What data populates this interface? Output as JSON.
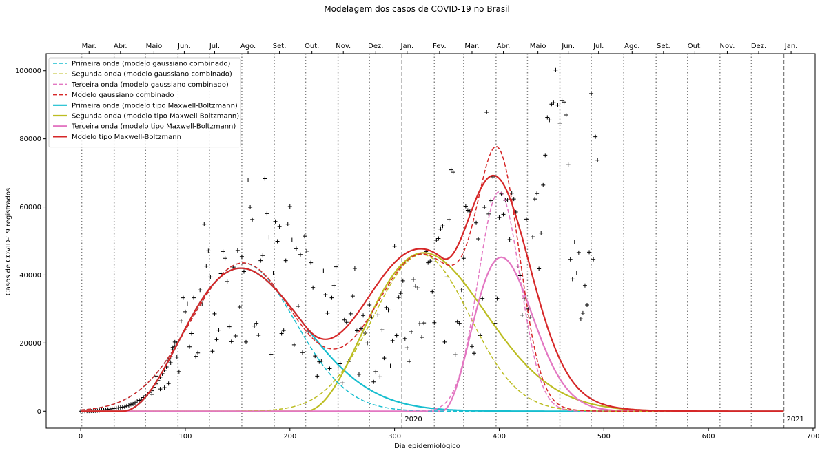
{
  "chart_data": {
    "type": "scatter+line",
    "title": "Modelagem dos casos de COVID-19 no Brasil",
    "xlabel": "Dia epidemiológico",
    "ylabel": "Casos de COVID-19 registrados",
    "xlim": [
      -33,
      702
    ],
    "ylim": [
      -5000,
      105000
    ],
    "xticks": [
      0,
      100,
      200,
      300,
      400,
      500,
      600,
      700
    ],
    "yticks": [
      0,
      20000,
      40000,
      60000,
      80000,
      100000
    ],
    "month_boundaries": [
      1,
      32,
      62,
      93,
      123,
      154,
      185,
      215,
      246,
      276,
      307,
      338,
      366,
      397,
      427,
      458,
      488,
      519,
      550,
      580,
      611,
      641,
      672
    ],
    "year_boundaries": [
      {
        "day": 307,
        "label": "2020"
      },
      {
        "day": 672,
        "label": "2021"
      }
    ],
    "top_month_labels": [
      {
        "day": 8,
        "label": "Mar."
      },
      {
        "day": 38,
        "label": "Abr."
      },
      {
        "day": 70,
        "label": "Maio"
      },
      {
        "day": 99,
        "label": "Jun."
      },
      {
        "day": 128,
        "label": "Jul."
      },
      {
        "day": 160,
        "label": "Ago."
      },
      {
        "day": 190,
        "label": "Set."
      },
      {
        "day": 221,
        "label": "Out."
      },
      {
        "day": 251,
        "label": "Nov."
      },
      {
        "day": 282,
        "label": "Dez."
      },
      {
        "day": 312,
        "label": "Jan."
      },
      {
        "day": 343,
        "label": "Fev."
      },
      {
        "day": 374,
        "label": "Mar."
      },
      {
        "day": 404,
        "label": "Abr."
      },
      {
        "day": 437,
        "label": "Maio"
      },
      {
        "day": 466,
        "label": "Jun."
      },
      {
        "day": 495,
        "label": "Jul."
      },
      {
        "day": 527,
        "label": "Ago."
      },
      {
        "day": 557,
        "label": "Set."
      },
      {
        "day": 587,
        "label": "Out."
      },
      {
        "day": 618,
        "label": "Nov."
      },
      {
        "day": 648,
        "label": "Dez."
      },
      {
        "day": 679,
        "label": "Jan."
      }
    ],
    "legend_position": "upper-left",
    "series": [
      {
        "name": "Primeira onda (modelo gaussiano combinado)",
        "color": "#17becf",
        "dash": true,
        "model": "gauss",
        "amplitude": 43500,
        "center": 155,
        "sigma": 50
      },
      {
        "name": "Segunda onda (modelo gaussiano combinado)",
        "color": "#bcbd22",
        "dash": true,
        "model": "gauss",
        "amplitude": 46000,
        "center": 326,
        "sigma": 46
      },
      {
        "name": "Terceira onda (modelo gaussiano combinado)",
        "color": "#e377c2",
        "dash": true,
        "model": "gauss",
        "amplitude": 64500,
        "center": 400,
        "sigma": 20
      },
      {
        "name": "Modelo gaussiano combinado",
        "color": "#d62728",
        "dash": true,
        "model": "sum",
        "components": [
          0,
          1,
          2
        ]
      },
      {
        "name": "Primeira onda (modelo tipo Maxwell-Boltzmann)",
        "color": "#17becf",
        "dash": false,
        "model": "mb",
        "amplitude": 42000,
        "onset": 40,
        "mode": 153
      },
      {
        "name": "Segunda onda (modelo tipo Maxwell-Boltzmann)",
        "color": "#bcbd22",
        "dash": false,
        "model": "mb",
        "amplitude": 46500,
        "onset": 215,
        "mode": 328
      },
      {
        "name": "Terceira onda (modelo tipo Maxwell-Boltzmann)",
        "color": "#e377c2",
        "dash": false,
        "model": "mb",
        "amplitude": 45200,
        "onset": 345,
        "mode": 402
      },
      {
        "name": "Modelo tipo Maxwell-Boltzmann",
        "color": "#d62728",
        "dash": false,
        "model": "sum",
        "components": [
          4,
          5,
          6
        ]
      }
    ],
    "observed_points": [
      [
        0,
        0
      ],
      [
        2,
        0
      ],
      [
        4,
        10
      ],
      [
        6,
        20
      ],
      [
        8,
        30
      ],
      [
        10,
        50
      ],
      [
        12,
        60
      ],
      [
        14,
        100
      ],
      [
        16,
        150
      ],
      [
        18,
        200
      ],
      [
        20,
        250
      ],
      [
        22,
        300
      ],
      [
        24,
        400
      ],
      [
        26,
        500
      ],
      [
        28,
        600
      ],
      [
        30,
        700
      ],
      [
        32,
        800
      ],
      [
        34,
        900
      ],
      [
        36,
        1000
      ],
      [
        38,
        1100
      ],
      [
        40,
        1200
      ],
      [
        42,
        1300
      ],
      [
        44,
        1500
      ],
      [
        46,
        1700
      ],
      [
        48,
        2000
      ],
      [
        50,
        2100
      ],
      [
        52,
        2500
      ],
      [
        54,
        3000
      ],
      [
        56,
        3200
      ],
      [
        58,
        3500
      ],
      [
        60,
        4000
      ],
      [
        62,
        4500
      ],
      [
        64,
        5000
      ],
      [
        66,
        5500
      ],
      [
        68,
        6000
      ],
      [
        70,
        7000
      ],
      [
        72,
        8000
      ],
      [
        74,
        9000
      ],
      [
        76,
        10000
      ],
      [
        78,
        11000
      ],
      [
        80,
        12000
      ],
      [
        82,
        13000
      ],
      [
        84,
        15000
      ],
      [
        86,
        16000
      ],
      [
        88,
        18000
      ],
      [
        90,
        19000
      ],
      [
        92,
        20000
      ],
      [
        68,
        4900
      ],
      [
        72,
        10300
      ],
      [
        76,
        6500
      ],
      [
        80,
        6900
      ],
      [
        84,
        8100
      ],
      [
        86,
        14200
      ],
      [
        88,
        18700
      ],
      [
        90,
        20300
      ],
      [
        92,
        15900
      ],
      [
        94,
        11600
      ],
      [
        96,
        26500
      ],
      [
        98,
        33300
      ],
      [
        100,
        29200
      ],
      [
        102,
        31500
      ],
      [
        104,
        18900
      ],
      [
        106,
        22800
      ],
      [
        108,
        33300
      ],
      [
        110,
        16100
      ],
      [
        112,
        17100
      ],
      [
        114,
        35600
      ],
      [
        116,
        31500
      ],
      [
        118,
        54900
      ],
      [
        120,
        42600
      ],
      [
        122,
        47100
      ],
      [
        124,
        39400
      ],
      [
        126,
        17600
      ],
      [
        128,
        28600
      ],
      [
        130,
        21000
      ],
      [
        132,
        23800
      ],
      [
        134,
        40400
      ],
      [
        136,
        46900
      ],
      [
        138,
        44900
      ],
      [
        140,
        38100
      ],
      [
        142,
        24800
      ],
      [
        144,
        20400
      ],
      [
        146,
        42300
      ],
      [
        148,
        22100
      ],
      [
        150,
        47200
      ],
      [
        152,
        30600
      ],
      [
        154,
        45400
      ],
      [
        156,
        41000
      ],
      [
        158,
        20300
      ],
      [
        160,
        67900
      ],
      [
        162,
        59900
      ],
      [
        164,
        56300
      ],
      [
        166,
        25000
      ],
      [
        168,
        25800
      ],
      [
        170,
        22300
      ],
      [
        172,
        44200
      ],
      [
        174,
        45700
      ],
      [
        176,
        68300
      ],
      [
        178,
        58000
      ],
      [
        180,
        51100
      ],
      [
        182,
        16700
      ],
      [
        184,
        40600
      ],
      [
        186,
        55700
      ],
      [
        188,
        49900
      ],
      [
        190,
        54200
      ],
      [
        192,
        22800
      ],
      [
        194,
        23700
      ],
      [
        196,
        44200
      ],
      [
        198,
        54900
      ],
      [
        200,
        60100
      ],
      [
        202,
        50300
      ],
      [
        204,
        19500
      ],
      [
        206,
        47700
      ],
      [
        208,
        30800
      ],
      [
        210,
        46000
      ],
      [
        212,
        17200
      ],
      [
        214,
        51400
      ],
      [
        216,
        47000
      ],
      [
        218,
        23500
      ],
      [
        220,
        43600
      ],
      [
        222,
        36300
      ],
      [
        224,
        16200
      ],
      [
        226,
        10300
      ],
      [
        228,
        14500
      ],
      [
        230,
        14700
      ],
      [
        232,
        41200
      ],
      [
        234,
        34200
      ],
      [
        236,
        28800
      ],
      [
        238,
        12500
      ],
      [
        240,
        33300
      ],
      [
        242,
        36900
      ],
      [
        244,
        42400
      ],
      [
        246,
        12700
      ],
      [
        248,
        13900
      ],
      [
        250,
        8300
      ],
      [
        252,
        26800
      ],
      [
        254,
        26100
      ],
      [
        256,
        14600
      ],
      [
        258,
        28600
      ],
      [
        260,
        33800
      ],
      [
        262,
        41900
      ],
      [
        264,
        23600
      ],
      [
        266,
        10800
      ],
      [
        268,
        24200
      ],
      [
        270,
        28100
      ],
      [
        272,
        22900
      ],
      [
        274,
        20000
      ],
      [
        276,
        31200
      ],
      [
        278,
        27500
      ],
      [
        280,
        8600
      ],
      [
        282,
        11600
      ],
      [
        284,
        28300
      ],
      [
        286,
        10100
      ],
      [
        288,
        23900
      ],
      [
        290,
        15600
      ],
      [
        292,
        30400
      ],
      [
        294,
        29700
      ],
      [
        296,
        13300
      ],
      [
        298,
        20700
      ],
      [
        300,
        48400
      ],
      [
        302,
        22200
      ],
      [
        304,
        33400
      ],
      [
        306,
        34600
      ],
      [
        308,
        38300
      ],
      [
        310,
        21300
      ],
      [
        312,
        18600
      ],
      [
        314,
        14600
      ],
      [
        316,
        23300
      ],
      [
        318,
        38700
      ],
      [
        320,
        36700
      ],
      [
        322,
        36200
      ],
      [
        324,
        25700
      ],
      [
        326,
        21700
      ],
      [
        328,
        25900
      ],
      [
        330,
        46900
      ],
      [
        332,
        43600
      ],
      [
        334,
        44100
      ],
      [
        336,
        35100
      ],
      [
        338,
        26000
      ],
      [
        340,
        50200
      ],
      [
        342,
        50700
      ],
      [
        344,
        53500
      ],
      [
        346,
        54400
      ],
      [
        348,
        20300
      ],
      [
        350,
        39400
      ],
      [
        352,
        56300
      ],
      [
        354,
        70900
      ],
      [
        356,
        70200
      ],
      [
        358,
        16600
      ],
      [
        360,
        26200
      ],
      [
        362,
        25800
      ],
      [
        364,
        35600
      ],
      [
        366,
        44900
      ],
      [
        368,
        60200
      ],
      [
        370,
        59000
      ],
      [
        372,
        58700
      ],
      [
        374,
        19000
      ],
      [
        376,
        17000
      ],
      [
        378,
        55300
      ],
      [
        380,
        50600
      ],
      [
        382,
        22200
      ],
      [
        384,
        33100
      ],
      [
        386,
        59900
      ],
      [
        388,
        87800
      ],
      [
        390,
        57900
      ],
      [
        392,
        61800
      ],
      [
        394,
        68800
      ],
      [
        396,
        25800
      ],
      [
        398,
        33100
      ],
      [
        400,
        56900
      ],
      [
        402,
        63800
      ],
      [
        404,
        57800
      ],
      [
        406,
        61900
      ],
      [
        408,
        62100
      ],
      [
        410,
        50400
      ],
      [
        412,
        64000
      ],
      [
        414,
        62300
      ],
      [
        416,
        58500
      ],
      [
        418,
        42600
      ],
      [
        420,
        39800
      ],
      [
        422,
        28200
      ],
      [
        424,
        33000
      ],
      [
        426,
        56400
      ],
      [
        428,
        30000
      ],
      [
        430,
        27600
      ],
      [
        432,
        51200
      ],
      [
        434,
        62300
      ],
      [
        436,
        63900
      ],
      [
        438,
        41800
      ],
      [
        440,
        52300
      ],
      [
        442,
        66400
      ],
      [
        444,
        75200
      ],
      [
        446,
        86300
      ],
      [
        448,
        85500
      ],
      [
        450,
        90200
      ],
      [
        452,
        90600
      ],
      [
        454,
        100200
      ],
      [
        456,
        89900
      ],
      [
        458,
        84600
      ],
      [
        460,
        91200
      ],
      [
        462,
        90800
      ],
      [
        464,
        87000
      ],
      [
        466,
        72400
      ],
      [
        468,
        44600
      ],
      [
        470,
        38800
      ],
      [
        472,
        49700
      ],
      [
        474,
        40600
      ],
      [
        476,
        46600
      ],
      [
        478,
        27100
      ],
      [
        480,
        28800
      ],
      [
        482,
        36900
      ],
      [
        484,
        31200
      ],
      [
        486,
        46700
      ],
      [
        488,
        93300
      ],
      [
        490,
        44600
      ],
      [
        492,
        80600
      ],
      [
        494,
        73700
      ]
    ]
  }
}
